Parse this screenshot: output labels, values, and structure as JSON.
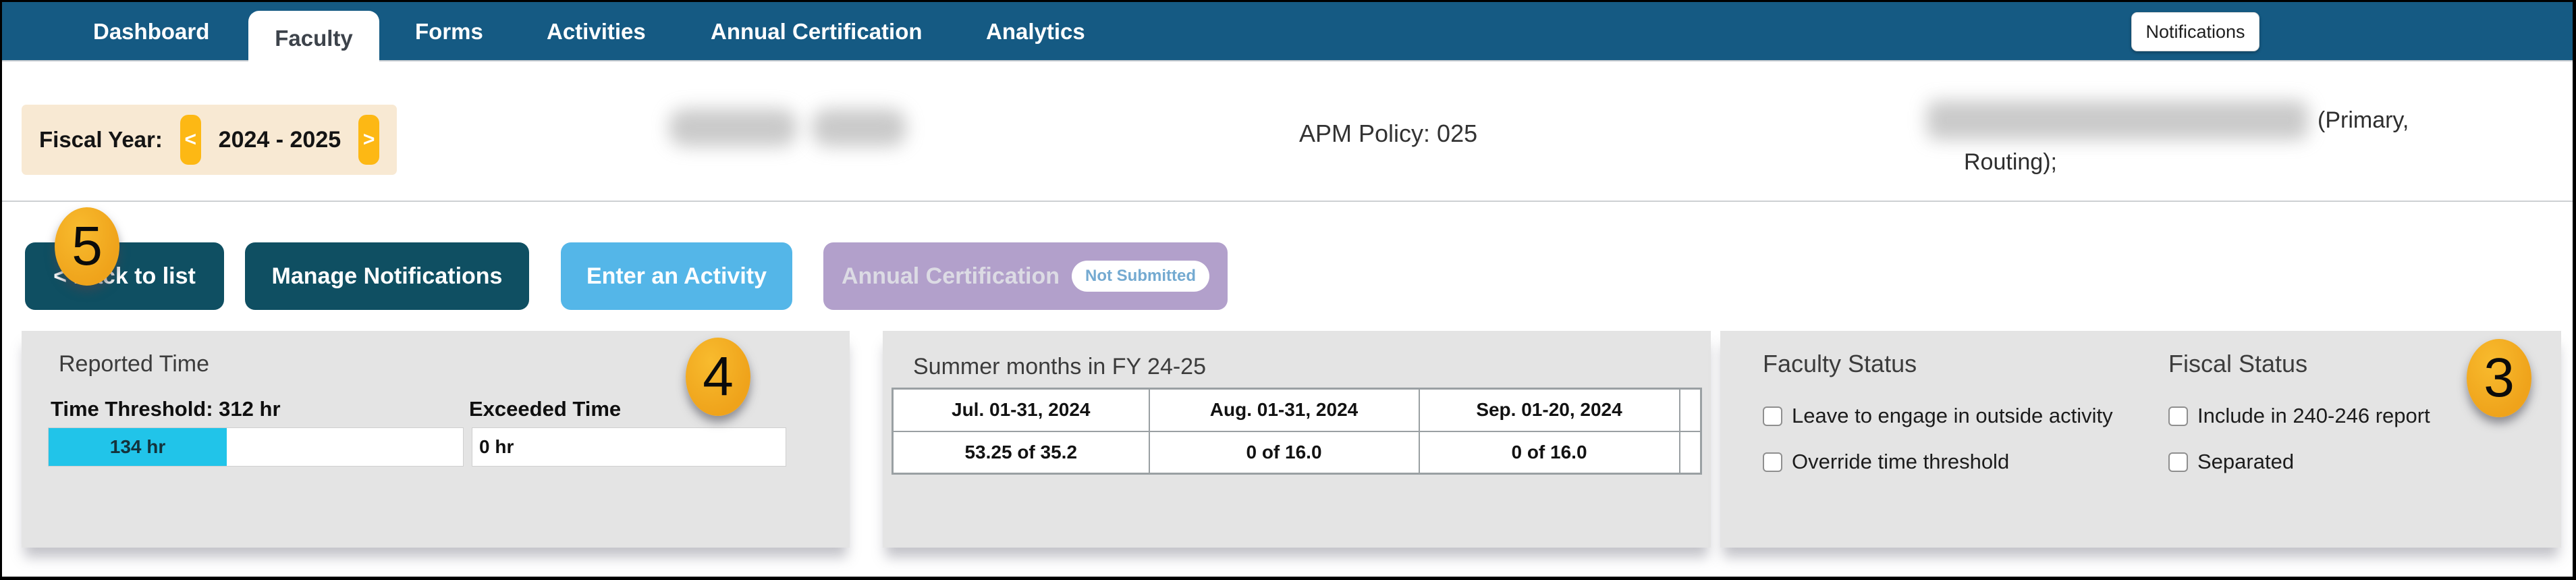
{
  "nav": {
    "tabs": [
      {
        "label": "Dashboard",
        "active": false
      },
      {
        "label": "Faculty",
        "active": true
      },
      {
        "label": "Forms",
        "active": false
      },
      {
        "label": "Activities",
        "active": false
      },
      {
        "label": "Annual Certification",
        "active": false
      },
      {
        "label": "Analytics",
        "active": false
      }
    ],
    "notifications_label": "Notifications"
  },
  "header": {
    "fiscal_year_label": "Fiscal Year:",
    "prev_arrow": "<",
    "fiscal_year_value": "2024 - 2025",
    "next_arrow": ">",
    "apm_policy": "APM Policy: 025",
    "dept_suffix_line1": "(Primary,",
    "dept_suffix_line2": "Routing);"
  },
  "actions": {
    "back_to_list": "< Back to list",
    "manage_notifications": "Manage Notifications",
    "enter_activity": "Enter an Activity",
    "annual_certification": "Annual Certification",
    "annual_certification_badge": "Not Submitted"
  },
  "callouts": {
    "back_to_list": "5",
    "reported_time": "4",
    "status": "3"
  },
  "reported_time": {
    "title": "Reported Time",
    "threshold_label": "Time Threshold: 312 hr",
    "exceeded_label": "Exceeded Time",
    "threshold_hours": 312,
    "reported_hours": 134,
    "reported_value": "134 hr",
    "exceeded_value": "0 hr",
    "bar_fill_percent": 43
  },
  "summer_months": {
    "title": "Summer months in FY 24-25",
    "columns": [
      "Jul. 01-31, 2024",
      "Aug. 01-31, 2024",
      "Sep. 01-20, 2024"
    ],
    "values": [
      "53.25 of 35.2",
      "0 of 16.0",
      "0 of 16.0"
    ]
  },
  "status_panel": {
    "faculty_title": "Faculty Status",
    "fiscal_title": "Fiscal Status",
    "faculty_options": [
      {
        "label": "Leave to engage in outside activity",
        "checked": false
      },
      {
        "label": "Override time threshold",
        "checked": false
      }
    ],
    "fiscal_options": [
      {
        "label": "Include in 240-246 report",
        "checked": false
      },
      {
        "label": "Separated",
        "checked": false
      }
    ]
  },
  "colors": {
    "nav_blue": "#155a83",
    "dark_teal": "#0f4f62",
    "light_blue": "#54b6e8",
    "purple": "#b2a0cb",
    "badge_text_blue": "#74aad1",
    "amber": "#fdb814",
    "cream": "#f8e9d3",
    "callout_orange": "#efa31b",
    "cyan": "#21c4e9",
    "panel_gray": "#e4e4e4"
  }
}
